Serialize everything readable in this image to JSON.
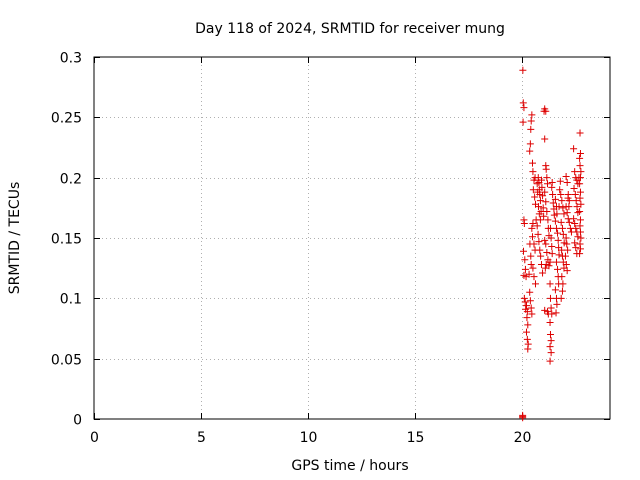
{
  "chart_data": {
    "type": "scatter",
    "title": "Day 118 of 2024, SRMTID for receiver mung",
    "xlabel": "GPS time / hours",
    "ylabel": "SRMTID / TECUs",
    "xlim": [
      0,
      24.1
    ],
    "ylim": [
      0,
      0.3
    ],
    "x_ticks": [
      0,
      5,
      10,
      15,
      20
    ],
    "x_tick_labels": [
      "0",
      "5",
      "10",
      "15",
      "20"
    ],
    "y_ticks": [
      0,
      0.05,
      0.1,
      0.15,
      0.2,
      0.25,
      0.3
    ],
    "y_tick_labels": [
      "0",
      "0.05",
      "0.1",
      "0.15",
      "0.2",
      "0.25",
      "0.3"
    ],
    "grid": true,
    "marker": "+",
    "color": "#dd0000",
    "series": [
      {
        "name": "SRMTID",
        "points": [
          [
            20.02,
            0.001
          ],
          [
            20.02,
            0.002
          ],
          [
            20.02,
            0.003
          ],
          [
            20.03,
            0.289
          ],
          [
            20.05,
            0.262
          ],
          [
            20.08,
            0.258
          ],
          [
            20.04,
            0.246
          ],
          [
            20.08,
            0.165
          ],
          [
            20.1,
            0.162
          ],
          [
            20.06,
            0.139
          ],
          [
            20.12,
            0.132
          ],
          [
            20.15,
            0.124
          ],
          [
            20.08,
            0.119
          ],
          [
            20.18,
            0.118
          ],
          [
            20.1,
            0.1
          ],
          [
            20.14,
            0.097
          ],
          [
            20.2,
            0.094
          ],
          [
            20.16,
            0.091
          ],
          [
            20.24,
            0.089
          ],
          [
            20.22,
            0.084
          ],
          [
            20.26,
            0.078
          ],
          [
            20.2,
            0.072
          ],
          [
            20.24,
            0.066
          ],
          [
            20.28,
            0.062
          ],
          [
            20.26,
            0.058
          ],
          [
            20.35,
            0.222
          ],
          [
            20.38,
            0.228
          ],
          [
            20.4,
            0.24
          ],
          [
            20.42,
            0.247
          ],
          [
            20.45,
            0.252
          ],
          [
            20.5,
            0.205
          ],
          [
            20.48,
            0.212
          ],
          [
            20.55,
            0.198
          ],
          [
            20.6,
            0.2
          ],
          [
            20.52,
            0.19
          ],
          [
            20.58,
            0.184
          ],
          [
            20.62,
            0.178
          ],
          [
            20.7,
            0.195
          ],
          [
            20.65,
            0.165
          ],
          [
            20.45,
            0.158
          ],
          [
            20.48,
            0.151
          ],
          [
            20.55,
            0.145
          ],
          [
            20.6,
            0.14
          ],
          [
            20.4,
            0.135
          ],
          [
            20.42,
            0.128
          ],
          [
            20.5,
            0.125
          ],
          [
            20.55,
            0.118
          ],
          [
            20.62,
            0.112
          ],
          [
            20.35,
            0.105
          ],
          [
            20.38,
            0.098
          ],
          [
            20.42,
            0.092
          ],
          [
            20.45,
            0.087
          ],
          [
            20.32,
            0.12
          ],
          [
            20.36,
            0.145
          ],
          [
            20.5,
            0.162
          ],
          [
            20.72,
            0.188
          ],
          [
            20.75,
            0.2
          ],
          [
            20.78,
            0.196
          ],
          [
            20.8,
            0.19
          ],
          [
            20.82,
            0.186
          ],
          [
            20.85,
            0.181
          ],
          [
            20.76,
            0.176
          ],
          [
            20.8,
            0.17
          ],
          [
            20.85,
            0.165
          ],
          [
            20.88,
            0.172
          ],
          [
            20.9,
            0.198
          ],
          [
            20.92,
            0.192
          ],
          [
            20.95,
            0.185
          ],
          [
            20.98,
            0.175
          ],
          [
            21.0,
            0.168
          ],
          [
            20.7,
            0.16
          ],
          [
            20.74,
            0.153
          ],
          [
            20.78,
            0.147
          ],
          [
            20.82,
            0.14
          ],
          [
            20.86,
            0.135
          ],
          [
            20.9,
            0.128
          ],
          [
            20.95,
            0.121
          ],
          [
            21.02,
            0.255
          ],
          [
            21.05,
            0.257
          ],
          [
            21.1,
            0.255
          ],
          [
            21.05,
            0.232
          ],
          [
            21.1,
            0.21
          ],
          [
            21.12,
            0.207
          ],
          [
            21.15,
            0.2
          ],
          [
            21.18,
            0.195
          ],
          [
            21.05,
            0.188
          ],
          [
            21.1,
            0.18
          ],
          [
            21.15,
            0.172
          ],
          [
            21.2,
            0.165
          ],
          [
            21.22,
            0.158
          ],
          [
            21.25,
            0.152
          ],
          [
            21.05,
            0.148
          ],
          [
            21.1,
            0.145
          ],
          [
            21.15,
            0.138
          ],
          [
            21.2,
            0.132
          ],
          [
            21.25,
            0.127
          ],
          [
            21.3,
            0.13
          ],
          [
            21.08,
            0.125
          ],
          [
            21.12,
            0.128
          ],
          [
            21.18,
            0.089
          ],
          [
            21.22,
            0.087
          ],
          [
            21.05,
            0.09
          ],
          [
            21.32,
            0.158
          ],
          [
            21.35,
            0.15
          ],
          [
            21.38,
            0.143
          ],
          [
            21.4,
            0.137
          ],
          [
            21.3,
            0.112
          ],
          [
            21.32,
            0.1
          ],
          [
            21.35,
            0.092
          ],
          [
            21.38,
            0.087
          ],
          [
            21.3,
            0.08
          ],
          [
            21.32,
            0.07
          ],
          [
            21.35,
            0.065
          ],
          [
            21.3,
            0.06
          ],
          [
            21.35,
            0.055
          ],
          [
            21.3,
            0.048
          ],
          [
            21.38,
            0.192
          ],
          [
            21.4,
            0.196
          ],
          [
            21.42,
            0.186
          ],
          [
            21.45,
            0.179
          ],
          [
            21.48,
            0.174
          ],
          [
            21.5,
            0.169
          ],
          [
            21.55,
            0.182
          ],
          [
            21.6,
            0.176
          ],
          [
            21.62,
            0.17
          ],
          [
            21.55,
            0.164
          ],
          [
            21.6,
            0.158
          ],
          [
            21.65,
            0.154
          ],
          [
            21.68,
            0.148
          ],
          [
            21.7,
            0.142
          ],
          [
            21.72,
            0.136
          ],
          [
            21.6,
            0.13
          ],
          [
            21.65,
            0.124
          ],
          [
            21.68,
            0.118
          ],
          [
            21.7,
            0.112
          ],
          [
            21.55,
            0.107
          ],
          [
            21.6,
            0.1
          ],
          [
            21.62,
            0.095
          ],
          [
            21.58,
            0.088
          ],
          [
            21.75,
            0.19
          ],
          [
            21.78,
            0.197
          ],
          [
            21.72,
            0.176
          ],
          [
            21.8,
            0.186
          ],
          [
            21.85,
            0.181
          ],
          [
            21.9,
            0.175
          ],
          [
            21.95,
            0.17
          ],
          [
            21.82,
            0.163
          ],
          [
            21.88,
            0.158
          ],
          [
            21.92,
            0.153
          ],
          [
            21.96,
            0.146
          ],
          [
            21.84,
            0.14
          ],
          [
            21.88,
            0.135
          ],
          [
            21.92,
            0.13
          ],
          [
            21.95,
            0.125
          ],
          [
            21.85,
            0.118
          ],
          [
            21.9,
            0.112
          ],
          [
            21.88,
            0.106
          ],
          [
            21.82,
            0.1
          ],
          [
            22.05,
            0.201
          ],
          [
            22.1,
            0.196
          ],
          [
            22.15,
            0.186
          ],
          [
            22.2,
            0.181
          ],
          [
            22.05,
            0.176
          ],
          [
            22.1,
            0.171
          ],
          [
            22.15,
            0.166
          ],
          [
            22.2,
            0.163
          ],
          [
            22.25,
            0.158
          ],
          [
            22.3,
            0.155
          ],
          [
            22.05,
            0.15
          ],
          [
            22.08,
            0.145
          ],
          [
            22.12,
            0.14
          ],
          [
            22.02,
            0.135
          ],
          [
            22.06,
            0.128
          ],
          [
            22.1,
            0.123
          ],
          [
            22.14,
            0.183
          ],
          [
            22.18,
            0.176
          ],
          [
            22.4,
            0.224
          ],
          [
            22.45,
            0.205
          ],
          [
            22.5,
            0.2
          ],
          [
            22.55,
            0.198
          ],
          [
            22.6,
            0.195
          ],
          [
            22.42,
            0.191
          ],
          [
            22.48,
            0.186
          ],
          [
            22.52,
            0.181
          ],
          [
            22.56,
            0.176
          ],
          [
            22.6,
            0.171
          ],
          [
            22.4,
            0.166
          ],
          [
            22.45,
            0.162
          ],
          [
            22.5,
            0.158
          ],
          [
            22.55,
            0.155
          ],
          [
            22.6,
            0.151
          ],
          [
            22.45,
            0.146
          ],
          [
            22.5,
            0.142
          ],
          [
            22.55,
            0.137
          ],
          [
            22.65,
            0.2
          ],
          [
            22.7,
            0.237
          ],
          [
            22.72,
            0.22
          ],
          [
            22.68,
            0.216
          ],
          [
            22.7,
            0.21
          ],
          [
            22.74,
            0.205
          ],
          [
            22.72,
            0.2
          ],
          [
            22.68,
            0.195
          ],
          [
            22.72,
            0.188
          ],
          [
            22.7,
            0.183
          ],
          [
            22.74,
            0.178
          ],
          [
            22.68,
            0.172
          ],
          [
            22.72,
            0.165
          ],
          [
            22.7,
            0.16
          ],
          [
            22.72,
            0.155
          ],
          [
            22.74,
            0.15
          ],
          [
            22.7,
            0.145
          ],
          [
            22.72,
            0.141
          ],
          [
            22.68,
            0.137
          ]
        ]
      }
    ]
  }
}
